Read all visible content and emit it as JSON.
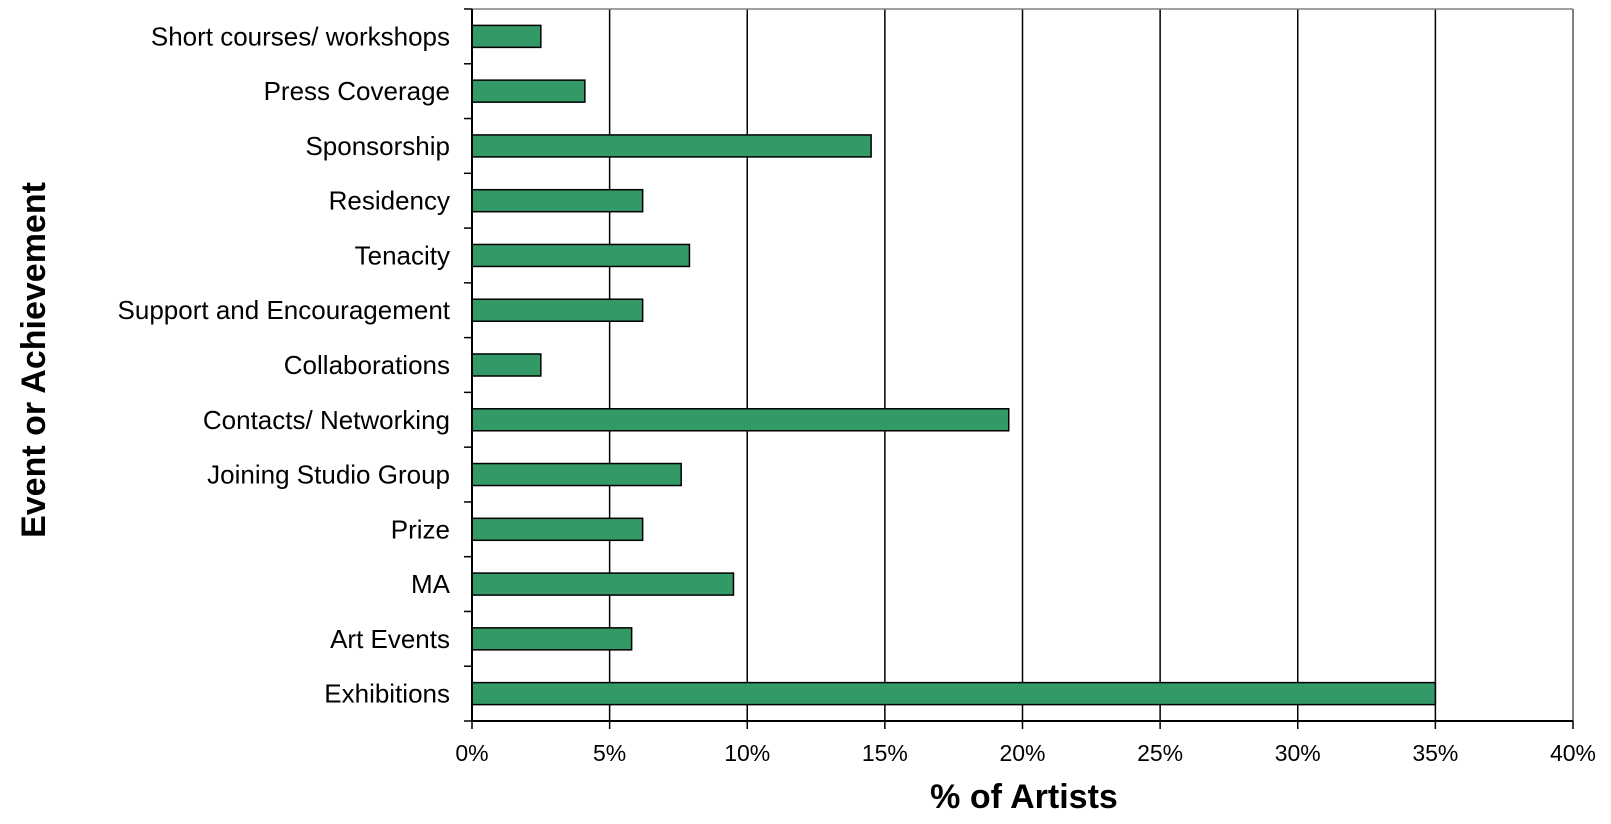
{
  "chart_data": {
    "type": "bar",
    "orientation": "horizontal",
    "title": "",
    "xlabel": "% of Artists",
    "ylabel": "Event or Achievement",
    "xlim": [
      0,
      40
    ],
    "x_ticks": [
      "0%",
      "5%",
      "10%",
      "15%",
      "20%",
      "25%",
      "30%",
      "35%",
      "40%"
    ],
    "grid": "vertical",
    "bar_color": "#339966",
    "categories": [
      "Short courses/ workshops",
      "Press Coverage",
      "Sponsorship",
      "Residency",
      "Tenacity",
      "Support and Encouragement",
      "Collaborations",
      "Contacts/ Networking",
      "Joining Studio Group",
      "Prize",
      "MA",
      "Art Events",
      "Exhibitions"
    ],
    "values": [
      2.5,
      4.1,
      14.5,
      6.2,
      7.9,
      6.2,
      2.5,
      19.5,
      7.6,
      6.2,
      9.5,
      5.8,
      35.0
    ]
  }
}
